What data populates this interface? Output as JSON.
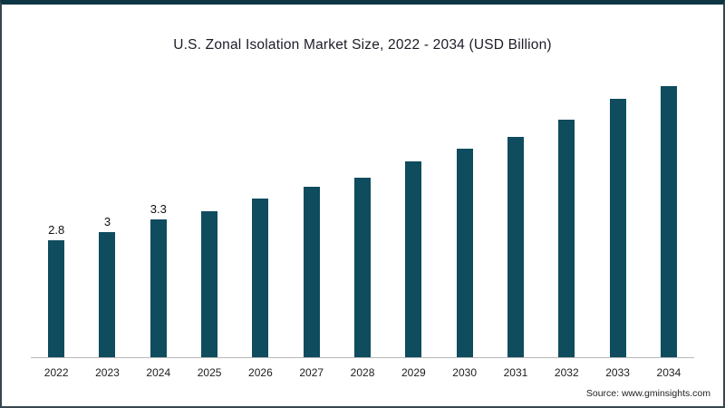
{
  "chart_data": {
    "type": "bar",
    "title": "U.S. Zonal Isolation Market Size, 2022 - 2034 (USD Billion)",
    "categories": [
      "2022",
      "2023",
      "2024",
      "2025",
      "2026",
      "2027",
      "2028",
      "2029",
      "2030",
      "2031",
      "2032",
      "2033",
      "2034"
    ],
    "values": [
      2.8,
      3.0,
      3.3,
      3.5,
      3.8,
      4.1,
      4.3,
      4.7,
      5.0,
      5.3,
      5.7,
      6.2,
      6.5
    ],
    "data_labels": [
      "2.8",
      "3",
      "3.3",
      "",
      "",
      "",
      "",
      "",
      "",
      "",
      "",
      "",
      ""
    ],
    "xlabel": "",
    "ylabel": "",
    "ylim": [
      0,
      6.9
    ],
    "grid": false,
    "legend_position": "none",
    "bar_color": "#0e4c5e"
  },
  "footer": {
    "source_label": "Source: www.gminsights.com"
  }
}
